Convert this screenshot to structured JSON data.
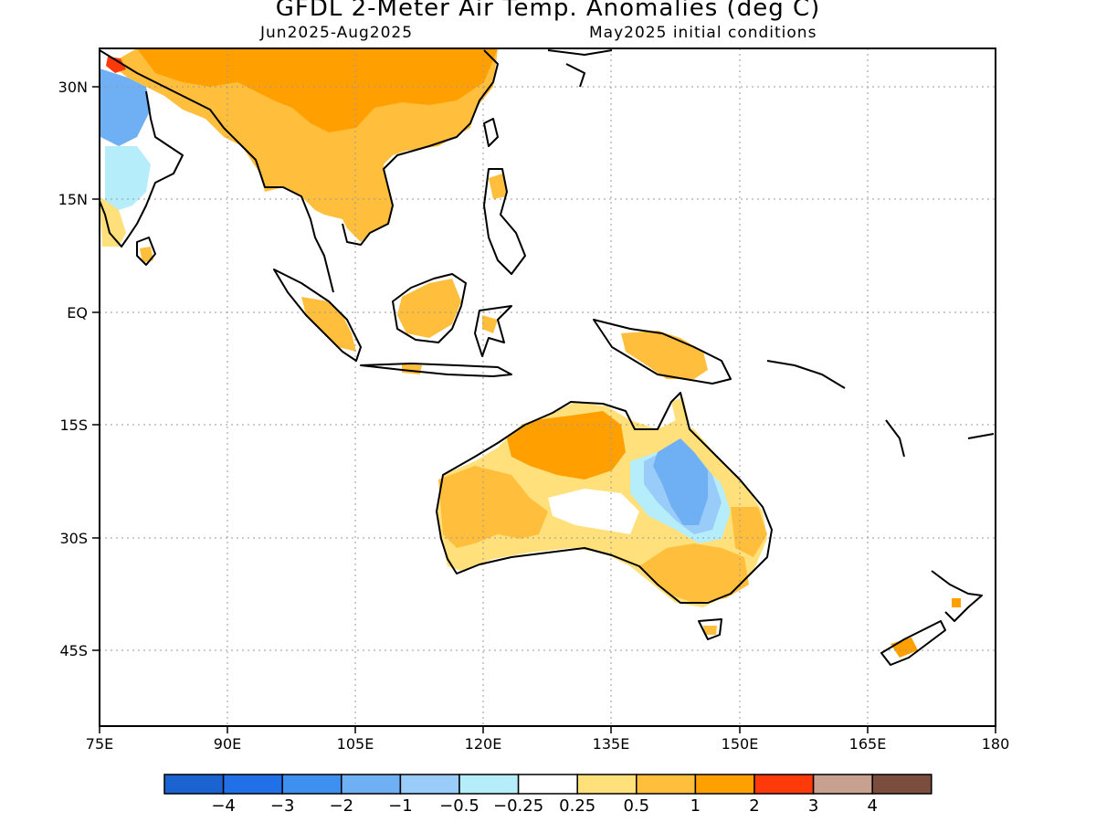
{
  "header": {
    "title": "GFDL 2-Meter Air Temp. Anomalies (deg C)",
    "period": "Jun2025-Aug2025",
    "init": "May2025 initial conditions"
  },
  "axes": {
    "lon_ticks": [
      "75E",
      "90E",
      "105E",
      "120E",
      "135E",
      "150E",
      "165E",
      "180"
    ],
    "lat_ticks": [
      "30N",
      "15N",
      "EQ",
      "15S",
      "30S",
      "45S"
    ]
  },
  "colorbar": {
    "colors": [
      "#1a63d1",
      "#2270e8",
      "#3d8ff0",
      "#6fb0f5",
      "#99ccf8",
      "#b5eefa",
      "#ffffff",
      "#ffe07a",
      "#ffbf3c",
      "#ffa000",
      "#ff3a0a",
      "#c8a090",
      "#7a4d3c"
    ],
    "labels": [
      "-4",
      "-3",
      "-2",
      "-1",
      "-0.5",
      "-0.25",
      "0.25",
      "0.5",
      "1",
      "2",
      "3",
      "4"
    ]
  },
  "anomaly_colors": {
    "warm_1": "#ffa000",
    "warm_05": "#ffbf3c",
    "warm_025": "#ffe07a",
    "cool_025": "#b5eefa",
    "cool_05": "#99ccf8",
    "cool_1": "#6fb0f5",
    "hot_3": "#ff3a0a"
  }
}
